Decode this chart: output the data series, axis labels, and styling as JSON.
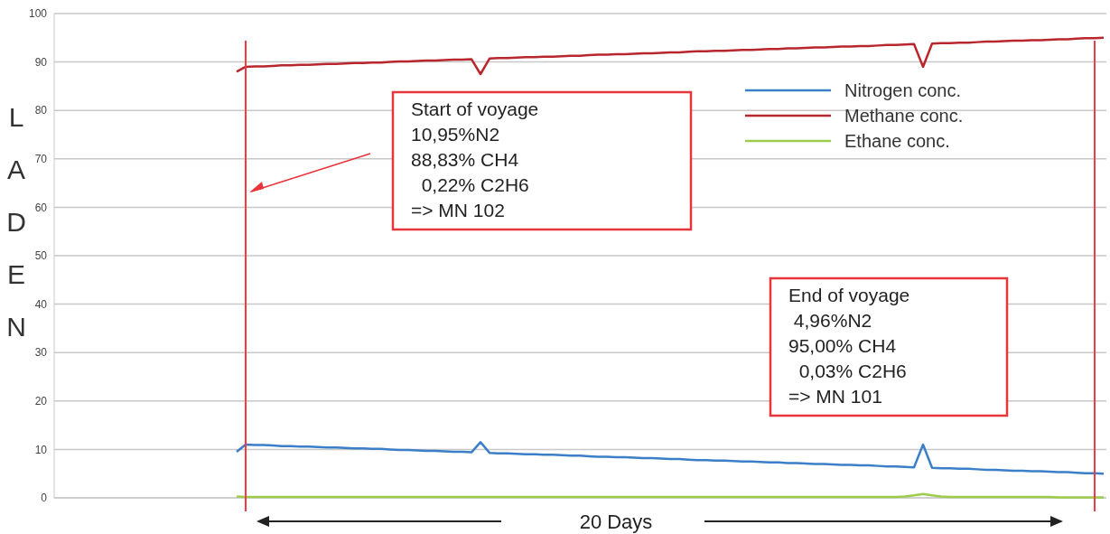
{
  "chart_data": {
    "type": "line",
    "ylabel": "LADEN",
    "categories": [
      null,
      null,
      null,
      null,
      null,
      null,
      null,
      null,
      null,
      null,
      null,
      null,
      null,
      null,
      null,
      null,
      null,
      null,
      null,
      null,
      null,
      null,
      null,
      null,
      null,
      null,
      null,
      null,
      null,
      null,
      null,
      null,
      null,
      null,
      null,
      null,
      null,
      null,
      null,
      null,
      null,
      null,
      null,
      null,
      null,
      null,
      null,
      null,
      null,
      null,
      null,
      null,
      null,
      null,
      null,
      null,
      null,
      null,
      null,
      null,
      null,
      null,
      null,
      null,
      null,
      null,
      null,
      null,
      null,
      null,
      null,
      null,
      null,
      null,
      null,
      null,
      null,
      null,
      null,
      null,
      null,
      null,
      null,
      null,
      null,
      null,
      null,
      null,
      null,
      null,
      null,
      null,
      null,
      null,
      null,
      null,
      null
    ],
    "ylim": [
      0,
      100
    ],
    "yticks": [
      0,
      10,
      20,
      30,
      40,
      50,
      60,
      70,
      80,
      90,
      100
    ],
    "tick_labels": "y",
    "grid": "y",
    "legend": "top right",
    "marker": "none",
    "line_style": "solid",
    "series": [
      {
        "name": "Nitrogen conc.",
        "color": "#3a7fc8",
        "values": [
          9.5,
          11,
          10.9,
          10.9,
          10.8,
          10.7,
          10.7,
          10.6,
          10.6,
          10.5,
          10.4,
          10.4,
          10.3,
          10.2,
          10.2,
          10.1,
          10.1,
          10,
          9.9,
          9.9,
          9.8,
          9.7,
          9.7,
          9.6,
          9.5,
          9.5,
          9.4,
          11.5,
          9.3,
          9.2,
          9.2,
          9.1,
          9,
          9,
          8.9,
          8.9,
          8.8,
          8.7,
          8.7,
          8.6,
          8.5,
          8.5,
          8.4,
          8.4,
          8.3,
          8.2,
          8.2,
          8.1,
          8,
          8,
          7.9,
          7.8,
          7.8,
          7.7,
          7.7,
          7.6,
          7.5,
          7.5,
          7.4,
          7.3,
          7.3,
          7.2,
          7.2,
          7.1,
          7,
          7,
          6.9,
          6.8,
          6.8,
          6.7,
          6.7,
          6.6,
          6.5,
          6.5,
          6.4,
          6.3,
          11,
          6.2,
          6.1,
          6.1,
          6,
          6,
          5.9,
          5.8,
          5.8,
          5.7,
          5.6,
          5.6,
          5.5,
          5.5,
          5.4,
          5.3,
          5.3,
          5.2,
          5.1,
          5.1,
          5
        ]
      },
      {
        "name": "Methane conc.",
        "color": "#b8272d",
        "values": [
          88,
          89,
          89.1,
          89.1,
          89.2,
          89.3,
          89.3,
          89.4,
          89.4,
          89.5,
          89.6,
          89.6,
          89.7,
          89.8,
          89.8,
          89.9,
          89.9,
          90,
          90.1,
          90.1,
          90.2,
          90.3,
          90.3,
          90.4,
          90.5,
          90.5,
          90.6,
          87.5,
          90.7,
          90.8,
          90.8,
          90.9,
          91,
          91,
          91.1,
          91.1,
          91.2,
          91.3,
          91.3,
          91.4,
          91.5,
          91.5,
          91.6,
          91.6,
          91.7,
          91.8,
          91.8,
          91.9,
          92,
          92,
          92.1,
          92.2,
          92.2,
          92.3,
          92.3,
          92.4,
          92.5,
          92.5,
          92.6,
          92.7,
          92.7,
          92.8,
          92.8,
          92.9,
          93,
          93,
          93.1,
          93.2,
          93.2,
          93.3,
          93.3,
          93.4,
          93.5,
          93.5,
          93.6,
          93.7,
          89,
          93.8,
          93.9,
          93.9,
          94,
          94,
          94.1,
          94.2,
          94.2,
          94.3,
          94.4,
          94.4,
          94.5,
          94.5,
          94.6,
          94.7,
          94.7,
          94.8,
          94.9,
          94.9,
          95
        ]
      },
      {
        "name": "Ethane conc.",
        "color": "#9ccc4a",
        "values": [
          0.3,
          0.2,
          0.2,
          0.2,
          0.2,
          0.2,
          0.2,
          0.2,
          0.2,
          0.2,
          0.2,
          0.2,
          0.2,
          0.2,
          0.2,
          0.2,
          0.2,
          0.2,
          0.2,
          0.2,
          0.2,
          0.2,
          0.2,
          0.2,
          0.2,
          0.2,
          0.2,
          0.2,
          0.2,
          0.2,
          0.2,
          0.2,
          0.2,
          0.2,
          0.2,
          0.2,
          0.2,
          0.2,
          0.2,
          0.2,
          0.2,
          0.2,
          0.2,
          0.2,
          0.2,
          0.2,
          0.2,
          0.2,
          0.2,
          0.2,
          0.2,
          0.2,
          0.2,
          0.2,
          0.2,
          0.2,
          0.2,
          0.2,
          0.2,
          0.2,
          0.2,
          0.2,
          0.2,
          0.2,
          0.2,
          0.2,
          0.2,
          0.2,
          0.2,
          0.2,
          0.2,
          0.2,
          0.2,
          0.2,
          0.3,
          0.5,
          0.8,
          0.5,
          0.3,
          0.2,
          0.2,
          0.2,
          0.2,
          0.2,
          0.2,
          0.2,
          0.2,
          0.2,
          0.2,
          0.2,
          0.2,
          0.1,
          0.1,
          0.1,
          0.1,
          0.1,
          0.1
        ]
      }
    ],
    "annotations": [
      "Start of voyage\n10,95%N2\n88,83% CH4\n  0,22% C2H6\n=> MN 102",
      "End of voyage\n 4,96%N2\n95,00% CH4\n  0,03% C2H6\n=> MN 101",
      "20 Days"
    ]
  }
}
